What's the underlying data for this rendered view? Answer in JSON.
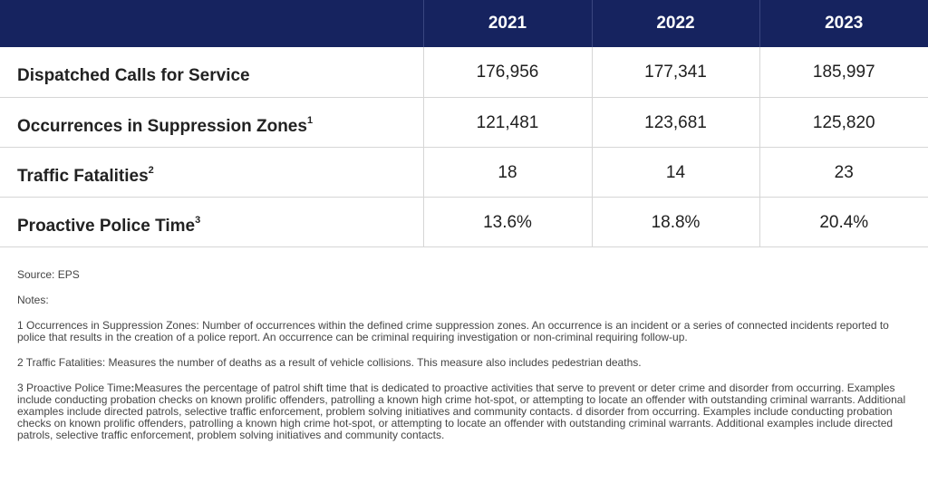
{
  "chart_data": {
    "type": "table",
    "columns": [
      "2021",
      "2022",
      "2023"
    ],
    "rows": [
      {
        "label": "Dispatched Calls for Service",
        "sup": "",
        "values": [
          "176,956",
          "177,341",
          "185,997"
        ]
      },
      {
        "label": "Occurrences in Suppression Zones",
        "sup": "1",
        "values": [
          "121,481",
          "123,681",
          "125,820"
        ]
      },
      {
        "label": "Traffic Fatalities",
        "sup": "2",
        "values": [
          "18",
          "14",
          "23"
        ]
      },
      {
        "label": "Proactive Police Time",
        "sup": "3",
        "values": [
          "13.6%",
          "18.8%",
          "20.4%"
        ]
      }
    ]
  },
  "colors": {
    "header_bg": "#16235f",
    "header_text": "#ffffff",
    "divider": "#d6d6d6"
  },
  "footer": {
    "source": "Source: EPS",
    "notes_heading": "Notes:",
    "note1": "1 Occurrences in Suppression Zones: Number of occurrences within the defined crime suppression zones. An occurrence is an incident or a series of connected incidents reported to police that results in the creation of a police report.  An occurrence can be criminal requiring investigation or non-criminal requiring follow-up.",
    "note2": "2 Traffic Fatalities: Measures the number of deaths as a result of vehicle collisions. This measure also includes pedestrian deaths.",
    "note3_lead": "3 Proactive Police Time",
    "note3": "Measures the percentage of patrol shift time that is dedicated to proactive activities that serve to prevent or deter crime and disorder from occurring. Examples include conducting probation checks on known prolific offenders, patrolling a known high crime hot-spot, or attempting to locate an offender with outstanding criminal warrants. Additional examples include directed patrols, selective traffic enforcement, problem solving initiatives and community contacts. d disorder from occurring. Examples include conducting probation checks on known prolific offenders, patrolling a known high crime hot-spot, or attempting to locate an offender with outstanding criminal warrants. Additional examples include directed patrols, selective traffic enforcement, problem solving initiatives and community contacts."
  }
}
